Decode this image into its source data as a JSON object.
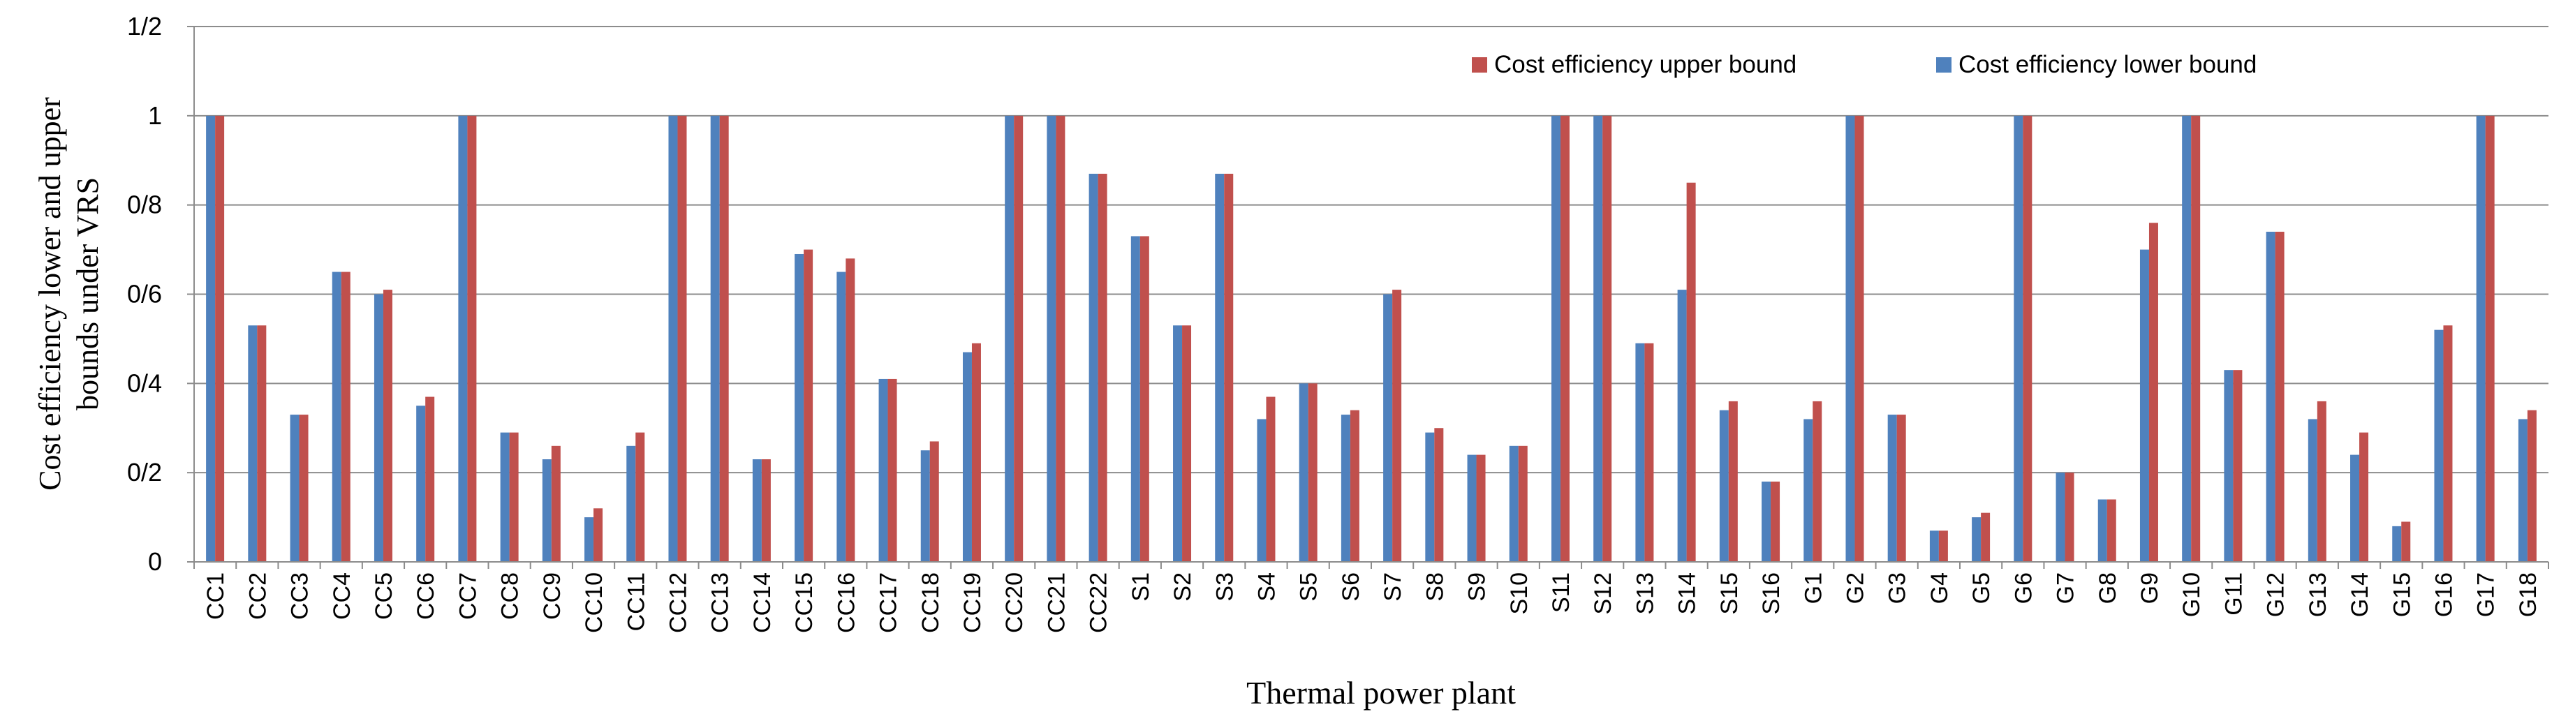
{
  "chart_data": {
    "type": "bar",
    "title": "",
    "xlabel": "Thermal power plant",
    "ylabel_lines": [
      "Cost efficiency lower and upper",
      "bounds under VRS"
    ],
    "ylim": [
      0,
      1.2
    ],
    "y_ticks": [
      {
        "value": 0,
        "label": "0"
      },
      {
        "value": 0.2,
        "label": "0/2"
      },
      {
        "value": 0.4,
        "label": "0/4"
      },
      {
        "value": 0.6,
        "label": "0/6"
      },
      {
        "value": 0.8,
        "label": "0/8"
      },
      {
        "value": 1.0,
        "label": "1"
      },
      {
        "value": 1.2,
        "label": "1/2"
      }
    ],
    "grid": true,
    "legend_position": "top-right",
    "categories": [
      "CC1",
      "CC2",
      "CC3",
      "CC4",
      "CC5",
      "CC6",
      "CC7",
      "CC8",
      "CC9",
      "CC10",
      "CC11",
      "CC12",
      "CC13",
      "CC14",
      "CC15",
      "CC16",
      "CC17",
      "CC18",
      "CC19",
      "CC20",
      "CC21",
      "CC22",
      "S1",
      "S2",
      "S3",
      "S4",
      "S5",
      "S6",
      "S7",
      "S8",
      "S9",
      "S10",
      "S11",
      "S12",
      "S13",
      "S14",
      "S15",
      "S16",
      "G1",
      "G2",
      "G3",
      "G4",
      "G5",
      "G6",
      "G7",
      "G8",
      "G9",
      "G10",
      "G11",
      "G12",
      "G13",
      "G14",
      "G15",
      "G16",
      "G17",
      "G18"
    ],
    "series": [
      {
        "name": "Cost efficiency lower bound",
        "color": "#4F81BD",
        "values": [
          1,
          0.53,
          0.33,
          0.65,
          0.6,
          0.35,
          1,
          0.29,
          0.23,
          0.1,
          0.26,
          1,
          1,
          0.23,
          0.69,
          0.65,
          0.41,
          0.25,
          0.47,
          1,
          1,
          0.87,
          0.73,
          0.53,
          0.87,
          0.32,
          0.4,
          0.33,
          0.6,
          0.29,
          0.24,
          0.26,
          1,
          1,
          0.49,
          0.61,
          0.34,
          0.18,
          0.32,
          1,
          0.33,
          0.07,
          0.1,
          1,
          0.2,
          0.14,
          0.7,
          1,
          0.43,
          0.74,
          0.32,
          0.24,
          0.08,
          0.52,
          1,
          0.32
        ]
      },
      {
        "name": "Cost efficiency upper bound",
        "color": "#C0504D",
        "values": [
          1,
          0.53,
          0.33,
          0.65,
          0.61,
          0.37,
          1,
          0.29,
          0.26,
          0.12,
          0.29,
          1,
          1,
          0.23,
          0.7,
          0.68,
          0.41,
          0.27,
          0.49,
          1,
          1,
          0.87,
          0.73,
          0.53,
          0.87,
          0.37,
          0.4,
          0.34,
          0.61,
          0.3,
          0.24,
          0.26,
          1,
          1,
          0.49,
          0.85,
          0.36,
          0.18,
          0.36,
          1,
          0.33,
          0.07,
          0.11,
          1,
          0.2,
          0.14,
          0.76,
          1,
          0.43,
          0.74,
          0.36,
          0.29,
          0.09,
          0.53,
          1,
          0.34
        ]
      }
    ]
  }
}
